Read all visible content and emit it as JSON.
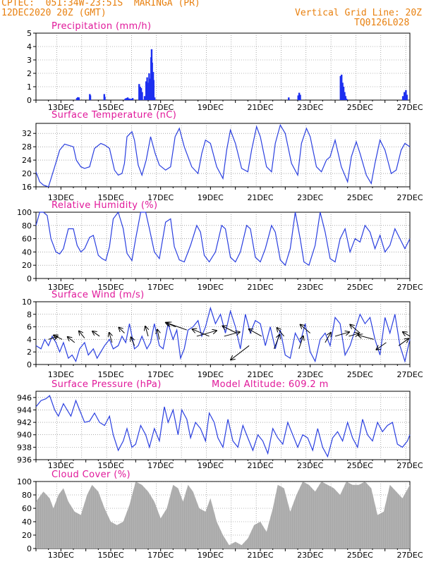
{
  "header": {
    "line1": "CPTEC:  051:34W-23:51S  MARINGA (PR)",
    "line2": "12DEC2020 20Z (GMT)",
    "grid_note": "Vertical Grid Line: 20Z",
    "code": "TQ0126L028"
  },
  "colors": {
    "header": "#e8800f",
    "title": "#e0189a",
    "line": "#2a3fe0",
    "bar": "#1c2ff0",
    "cloud": "#a8a8a8",
    "arrow": "#000000"
  },
  "x_tick_labels": [
    "13DEC",
    "15DEC",
    "17DEC",
    "19DEC",
    "21DEC",
    "23DEC",
    "25DEC",
    "27DEC"
  ],
  "chart_data": [
    {
      "type": "bar",
      "title": "Precipitation (mm/h)",
      "ylim": [
        0,
        5
      ],
      "yticks": [
        0,
        1,
        2,
        3,
        4,
        5
      ],
      "x_days": [
        13.64,
        13.68,
        13.72,
        14.16,
        14.18,
        14.74,
        14.76,
        15.58,
        15.62,
        15.68,
        15.74,
        15.78,
        15.82,
        15.88,
        16.14,
        16.18,
        16.22,
        16.26,
        16.36,
        16.42,
        16.46,
        16.5,
        16.54,
        16.58,
        16.62,
        16.64,
        16.66,
        16.68,
        16.7,
        16.72,
        16.76,
        22.14,
        22.52,
        22.56,
        22.6,
        24.22,
        24.26,
        24.3,
        24.34,
        24.38,
        24.42,
        24.46,
        26.72,
        26.78,
        26.84,
        26.88
      ],
      "values": [
        0.15,
        0.22,
        0.2,
        0.45,
        0.35,
        0.45,
        0.25,
        0.1,
        0.15,
        0.2,
        0.12,
        0.08,
        0.1,
        0.15,
        1.2,
        1.0,
        0.9,
        0.6,
        0.3,
        1.4,
        1.7,
        1.3,
        2.0,
        1.6,
        3.2,
        3.8,
        2.8,
        1.3,
        2.1,
        1.5,
        0.2,
        0.2,
        0.35,
        0.55,
        0.4,
        1.8,
        1.9,
        1.3,
        1.0,
        0.6,
        0.3,
        0.1,
        0.3,
        0.6,
        0.75,
        0.4
      ]
    },
    {
      "type": "line",
      "title": "Surface Temperature (nC)",
      "ylim": [
        16,
        35
      ],
      "yticks": [
        16,
        20,
        24,
        28,
        32
      ],
      "x_days": [
        12.0,
        12.15,
        12.3,
        12.5,
        12.75,
        12.95,
        13.15,
        13.5,
        13.62,
        13.8,
        13.95,
        14.15,
        14.35,
        14.6,
        14.76,
        14.95,
        15.15,
        15.3,
        15.45,
        15.55,
        15.65,
        15.85,
        15.95,
        16.1,
        16.25,
        16.42,
        16.6,
        16.78,
        16.95,
        17.2,
        17.4,
        17.58,
        17.75,
        17.95,
        18.25,
        18.5,
        18.65,
        18.8,
        19.0,
        19.25,
        19.5,
        19.65,
        19.8,
        20.0,
        20.25,
        20.5,
        20.65,
        20.85,
        21.0,
        21.25,
        21.45,
        21.6,
        21.8,
        22.0,
        22.25,
        22.5,
        22.65,
        22.85,
        23.0,
        23.25,
        23.45,
        23.65,
        23.8,
        24.0,
        24.25,
        24.5,
        24.65,
        24.85,
        25.0,
        25.25,
        25.45,
        25.6,
        25.8,
        26.0,
        26.25,
        26.45,
        26.65,
        26.8,
        27.0
      ],
      "values": [
        20.5,
        17.5,
        16.5,
        16.0,
        22.0,
        27.0,
        28.8,
        28.0,
        24.0,
        22.0,
        21.5,
        22.0,
        27.5,
        29.0,
        28.5,
        27.5,
        21.0,
        19.5,
        20.0,
        23.0,
        31.0,
        32.5,
        30.0,
        22.5,
        19.5,
        24.0,
        31.0,
        26.0,
        22.5,
        21.0,
        22.0,
        31.0,
        33.5,
        28.0,
        22.0,
        20.0,
        26.0,
        30.0,
        29.0,
        22.0,
        18.5,
        27.0,
        33.0,
        29.0,
        21.5,
        20.5,
        27.0,
        34.0,
        31.0,
        22.0,
        20.5,
        29.0,
        34.5,
        32.0,
        23.0,
        19.5,
        29.0,
        33.5,
        31.0,
        22.0,
        20.5,
        24.0,
        25.0,
        30.0,
        22.0,
        17.5,
        25.0,
        29.5,
        26.0,
        19.5,
        17.0,
        23.0,
        30.0,
        27.0,
        20.0,
        21.0,
        27.0,
        29.0,
        28.0
      ]
    },
    {
      "type": "line",
      "title": "Relative Humidity (%)",
      "ylim": [
        0,
        100
      ],
      "yticks": [
        0,
        20,
        40,
        60,
        80,
        100
      ],
      "x_days": [
        12.0,
        12.15,
        12.3,
        12.45,
        12.6,
        12.8,
        12.95,
        13.1,
        13.3,
        13.5,
        13.65,
        13.8,
        13.95,
        14.15,
        14.3,
        14.5,
        14.65,
        14.8,
        14.95,
        15.1,
        15.3,
        15.5,
        15.65,
        15.85,
        16.0,
        16.2,
        16.4,
        16.55,
        16.75,
        16.95,
        17.2,
        17.4,
        17.55,
        17.75,
        17.95,
        18.2,
        18.45,
        18.6,
        18.75,
        18.95,
        19.2,
        19.45,
        19.6,
        19.8,
        20.0,
        20.2,
        20.45,
        20.6,
        20.8,
        21.0,
        21.2,
        21.45,
        21.6,
        21.8,
        22.0,
        22.2,
        22.4,
        22.6,
        22.75,
        22.95,
        23.2,
        23.4,
        23.6,
        23.8,
        24.0,
        24.2,
        24.4,
        24.6,
        24.8,
        25.0,
        25.2,
        25.4,
        25.6,
        25.8,
        26.0,
        26.2,
        26.4,
        26.6,
        26.8,
        27.0
      ],
      "values": [
        80.0,
        100.0,
        100.0,
        95.0,
        60.0,
        40.0,
        37.0,
        45.0,
        75.0,
        75.0,
        50.0,
        40.0,
        45.0,
        62.0,
        65.0,
        35.0,
        30.0,
        27.0,
        48.0,
        90.0,
        100.0,
        75.0,
        38.0,
        27.0,
        60.0,
        100.0,
        100.0,
        75.0,
        40.0,
        30.0,
        85.0,
        90.0,
        48.0,
        28.0,
        25.0,
        50.0,
        80.0,
        70.0,
        35.0,
        25.0,
        40.0,
        80.0,
        75.0,
        32.0,
        25.0,
        40.0,
        80.0,
        75.0,
        32.0,
        25.0,
        45.0,
        80.0,
        70.0,
        28.0,
        20.0,
        45.0,
        100.0,
        60.0,
        25.0,
        20.0,
        50.0,
        100.0,
        70.0,
        30.0,
        25.0,
        60.0,
        75.0,
        40.0,
        60.0,
        55.0,
        80.0,
        70.0,
        45.0,
        65.0,
        40.0,
        50.0,
        75.0,
        60.0,
        45.0,
        60.0
      ]
    },
    {
      "type": "line",
      "title": "Surface Wind (m/s)",
      "ylim": [
        0,
        10
      ],
      "yticks": [
        0,
        2,
        4,
        6,
        8,
        10
      ],
      "x_days": [
        12.0,
        12.2,
        12.35,
        12.5,
        12.65,
        12.8,
        12.95,
        13.1,
        13.3,
        13.45,
        13.6,
        13.75,
        13.95,
        14.1,
        14.3,
        14.45,
        14.6,
        14.75,
        14.95,
        15.1,
        15.3,
        15.45,
        15.6,
        15.75,
        15.95,
        16.1,
        16.25,
        16.45,
        16.6,
        16.75,
        16.95,
        17.1,
        17.3,
        17.5,
        17.65,
        17.8,
        17.95,
        18.1,
        18.3,
        18.5,
        18.65,
        18.8,
        19.0,
        19.2,
        19.4,
        19.6,
        19.8,
        20.0,
        20.2,
        20.4,
        20.6,
        20.8,
        21.0,
        21.2,
        21.4,
        21.6,
        21.8,
        22.0,
        22.2,
        22.4,
        22.6,
        22.8,
        23.0,
        23.2,
        23.4,
        23.6,
        23.8,
        24.0,
        24.2,
        24.4,
        24.6,
        24.8,
        25.0,
        25.2,
        25.4,
        25.6,
        25.8,
        26.0,
        26.2,
        26.4,
        26.6,
        26.8,
        27.0
      ],
      "values": [
        3.0,
        2.5,
        4.0,
        3.0,
        4.5,
        3.5,
        2.0,
        3.5,
        1.0,
        1.5,
        0.5,
        2.5,
        3.5,
        1.5,
        2.5,
        1.0,
        2.0,
        3.0,
        4.0,
        2.5,
        3.0,
        4.5,
        3.5,
        6.5,
        2.5,
        3.0,
        4.5,
        2.5,
        3.5,
        6.5,
        3.0,
        2.5,
        6.5,
        4.0,
        5.5,
        1.0,
        2.5,
        5.5,
        6.0,
        7.0,
        4.5,
        6.0,
        9.0,
        6.5,
        8.0,
        5.0,
        8.5,
        6.0,
        2.5,
        8.0,
        5.0,
        7.0,
        6.5,
        3.0,
        6.0,
        2.5,
        5.5,
        1.5,
        1.0,
        5.0,
        3.5,
        6.5,
        2.0,
        0.5,
        4.0,
        5.0,
        3.0,
        7.5,
        6.5,
        1.5,
        3.0,
        5.5,
        8.0,
        6.5,
        7.5,
        4.0,
        1.5,
        7.5,
        5.0,
        8.0,
        3.0,
        0.5,
        4.0
      ],
      "arrows": [
        {
          "day": 12.5,
          "speed": 4.0,
          "dx": 13,
          "dy": -4
        },
        {
          "day": 13.05,
          "speed": 4.0,
          "dx": -12,
          "dy": -6
        },
        {
          "day": 13.55,
          "speed": 3.5,
          "dx": -10,
          "dy": -8
        },
        {
          "day": 13.95,
          "speed": 4.2,
          "dx": -8,
          "dy": -10
        },
        {
          "day": 14.55,
          "speed": 4.5,
          "dx": -10,
          "dy": -7
        },
        {
          "day": 15.05,
          "speed": 3.5,
          "dx": -4,
          "dy": -14
        },
        {
          "day": 15.55,
          "speed": 5.0,
          "dx": -8,
          "dy": -8
        },
        {
          "day": 15.95,
          "speed": 3.0,
          "dx": -5,
          "dy": -12
        },
        {
          "day": 16.5,
          "speed": 4.5,
          "dx": -4,
          "dy": -14
        },
        {
          "day": 16.95,
          "speed": 4.0,
          "dx": -3,
          "dy": -14
        },
        {
          "day": 17.6,
          "speed": 6.0,
          "dx": -14,
          "dy": -6
        },
        {
          "day": 18.05,
          "speed": 5.5,
          "dx": -28,
          "dy": -10
        },
        {
          "day": 18.45,
          "speed": 4.5,
          "dx": 28,
          "dy": -8
        },
        {
          "day": 18.95,
          "speed": 4.5,
          "dx": -24,
          "dy": -10
        },
        {
          "day": 19.55,
          "speed": 4.5,
          "dx": 22,
          "dy": -6
        },
        {
          "day": 20.05,
          "speed": 5.0,
          "dx": -20,
          "dy": -10
        },
        {
          "day": 20.55,
          "speed": 3.0,
          "dx": -26,
          "dy": 20
        },
        {
          "day": 21.05,
          "speed": 4.5,
          "dx": -18,
          "dy": -10
        },
        {
          "day": 21.55,
          "speed": 2.5,
          "dx": 8,
          "dy": -20
        },
        {
          "day": 21.95,
          "speed": 4.5,
          "dx": -10,
          "dy": -12
        },
        {
          "day": 22.55,
          "speed": 2.5,
          "dx": 6,
          "dy": -18
        },
        {
          "day": 23.0,
          "speed": 5.0,
          "dx": -14,
          "dy": -12
        },
        {
          "day": 23.6,
          "speed": 3.5,
          "dx": 8,
          "dy": -14
        },
        {
          "day": 24.0,
          "speed": 4.5,
          "dx": 20,
          "dy": -6
        },
        {
          "day": 24.55,
          "speed": 4.5,
          "dx": 14,
          "dy": -4
        },
        {
          "day": 25.0,
          "speed": 5.0,
          "dx": -14,
          "dy": -12
        },
        {
          "day": 25.55,
          "speed": 4.0,
          "dx": -22,
          "dy": -6
        },
        {
          "day": 26.05,
          "speed": 3.5,
          "dx": -14,
          "dy": 10
        },
        {
          "day": 26.55,
          "speed": 3.0,
          "dx": 14,
          "dy": -10
        },
        {
          "day": 27.0,
          "speed": 4.5,
          "dx": -10,
          "dy": -6
        }
      ]
    },
    {
      "type": "line",
      "title": "Surface Pressure (hPa)",
      "extra_label": "Model Altitude: 609.2 m",
      "ylim": [
        936,
        947
      ],
      "yticks": [
        936,
        938,
        940,
        942,
        944,
        946
      ],
      "x_days": [
        12.0,
        12.2,
        12.4,
        12.55,
        12.75,
        12.9,
        13.1,
        13.25,
        13.4,
        13.6,
        13.75,
        13.95,
        14.15,
        14.35,
        14.55,
        14.75,
        14.95,
        15.1,
        15.3,
        15.5,
        15.65,
        15.85,
        16.0,
        16.2,
        16.4,
        16.55,
        16.75,
        16.95,
        17.15,
        17.3,
        17.5,
        17.7,
        17.85,
        18.05,
        18.2,
        18.4,
        18.6,
        18.8,
        18.95,
        19.15,
        19.3,
        19.5,
        19.7,
        19.9,
        20.1,
        20.3,
        20.5,
        20.7,
        20.9,
        21.1,
        21.3,
        21.5,
        21.7,
        21.9,
        22.1,
        22.3,
        22.5,
        22.7,
        22.9,
        23.1,
        23.3,
        23.5,
        23.7,
        23.9,
        24.1,
        24.3,
        24.5,
        24.7,
        24.9,
        25.1,
        25.3,
        25.5,
        25.7,
        25.9,
        26.1,
        26.3,
        26.5,
        26.7,
        26.9,
        27.0
      ],
      "values": [
        944.5,
        945.5,
        945.8,
        946.3,
        944.0,
        943.0,
        945.0,
        944.0,
        943.0,
        945.5,
        944.0,
        942.0,
        942.2,
        943.5,
        942.0,
        941.5,
        943.0,
        940.0,
        937.5,
        939.0,
        941.0,
        938.0,
        938.5,
        941.5,
        940.0,
        938.0,
        941.0,
        939.0,
        944.5,
        942.0,
        944.0,
        940.0,
        944.0,
        942.5,
        939.5,
        942.0,
        941.0,
        939.0,
        943.5,
        942.0,
        939.5,
        938.0,
        942.5,
        939.0,
        938.0,
        941.5,
        939.5,
        937.5,
        940.0,
        939.0,
        937.0,
        941.0,
        939.5,
        938.5,
        942.0,
        940.0,
        938.0,
        940.0,
        939.5,
        937.5,
        941.0,
        938.0,
        936.5,
        939.5,
        940.5,
        939.0,
        942.0,
        939.5,
        938.0,
        942.5,
        940.0,
        939.0,
        942.0,
        940.5,
        941.5,
        942.0,
        938.5,
        938.0,
        939.0,
        940.0
      ]
    },
    {
      "type": "area",
      "title": "Cloud Cover (%)",
      "ylim": [
        0,
        100
      ],
      "yticks": [
        0,
        20,
        40,
        60,
        80,
        100
      ],
      "x_days": [
        12.0,
        12.3,
        12.55,
        12.7,
        12.9,
        13.1,
        13.3,
        13.55,
        13.8,
        14.05,
        14.25,
        14.5,
        14.75,
        15.0,
        15.25,
        15.5,
        15.75,
        16.0,
        16.25,
        16.5,
        16.75,
        17.0,
        17.25,
        17.5,
        17.7,
        17.9,
        18.1,
        18.3,
        18.55,
        18.8,
        19.0,
        19.25,
        19.5,
        19.75,
        20.0,
        20.25,
        20.5,
        20.75,
        21.0,
        21.25,
        21.5,
        21.7,
        21.95,
        22.2,
        22.45,
        22.7,
        22.95,
        23.2,
        23.45,
        23.7,
        23.95,
        24.2,
        24.45,
        24.7,
        24.95,
        25.2,
        25.45,
        25.7,
        25.95,
        26.2,
        26.45,
        26.7,
        27.0
      ],
      "values": [
        70.0,
        85.0,
        75.0,
        60.0,
        80.0,
        90.0,
        70.0,
        55.0,
        50.0,
        80.0,
        95.0,
        85.0,
        60.0,
        40.0,
        35.0,
        40.0,
        65.0,
        100.0,
        95.0,
        85.0,
        70.0,
        45.0,
        60.0,
        95.0,
        90.0,
        70.0,
        95.0,
        85.0,
        60.0,
        55.0,
        75.0,
        40.0,
        20.0,
        5.0,
        10.0,
        5.0,
        15.0,
        35.0,
        40.0,
        25.0,
        60.0,
        95.0,
        90.0,
        55.0,
        80.0,
        100.0,
        95.0,
        85.0,
        100.0,
        95.0,
        90.0,
        80.0,
        100.0,
        95.0,
        95.0,
        100.0,
        90.0,
        50.0,
        55.0,
        95.0,
        85.0,
        75.0,
        95.0
      ]
    }
  ]
}
